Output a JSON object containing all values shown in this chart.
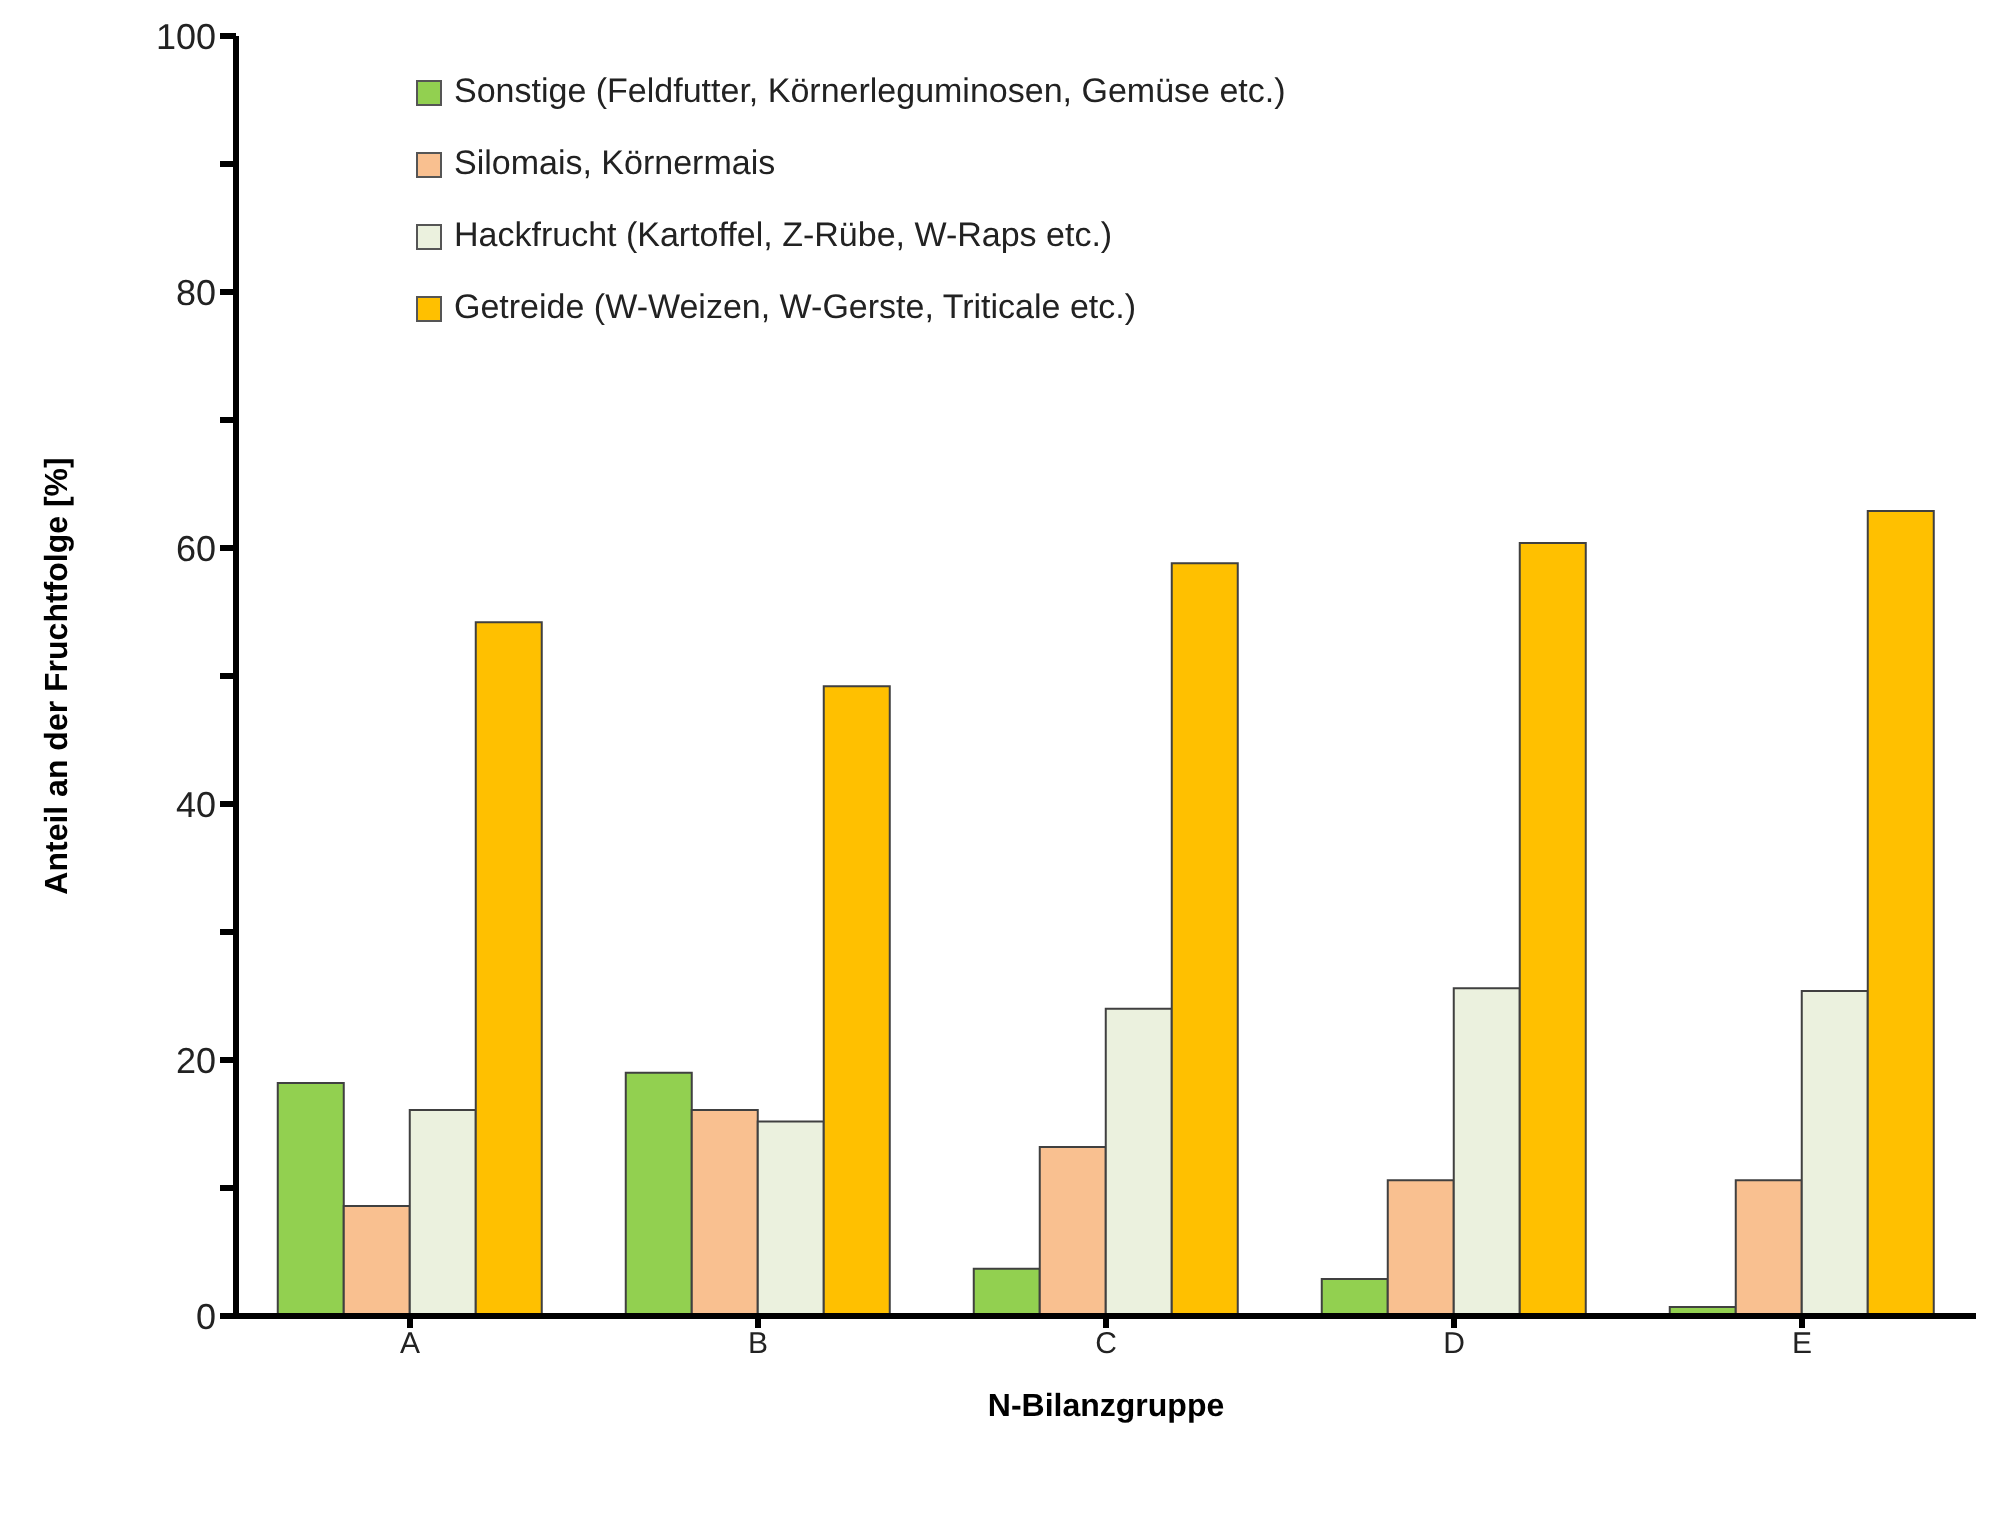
{
  "chart_data": {
    "type": "bar",
    "xlabel": "N-Bilanzgruppe",
    "ylabel": "Anteil an der Fruchtfolge [%]",
    "categories": [
      "A",
      "B",
      "C",
      "D",
      "E"
    ],
    "series": [
      {
        "name": "Sonstige (Feldfutter, Körnerleguminosen, Gemüse etc.)",
        "color": "#92d050",
        "values": [
          18.2,
          19.0,
          3.7,
          2.9,
          0.7
        ]
      },
      {
        "name": "Silomais, Körnermais",
        "color": "#f9c090",
        "values": [
          8.6,
          16.1,
          13.2,
          10.6,
          10.6
        ]
      },
      {
        "name": "Hackfrucht (Kartoffel, Z-Rübe, W-Raps etc.)",
        "color": "#ebf1de",
        "values": [
          16.1,
          15.2,
          24.0,
          25.6,
          25.4
        ]
      },
      {
        "name": "Getreide (W-Weizen, W-Gerste, Triticale etc.)",
        "color": "#ffc000",
        "values": [
          54.2,
          49.2,
          58.8,
          60.4,
          62.9
        ]
      }
    ],
    "ylim": [
      0,
      100
    ],
    "yticks": [
      0,
      {
        "value": 10,
        "label": null
      },
      20,
      {
        "value": 30,
        "label": null
      },
      40,
      {
        "value": 50,
        "label": null
      },
      60,
      {
        "value": 70,
        "label": null
      },
      80,
      {
        "value": 90,
        "label": null
      },
      100
    ],
    "grid": false,
    "legend": "top"
  }
}
